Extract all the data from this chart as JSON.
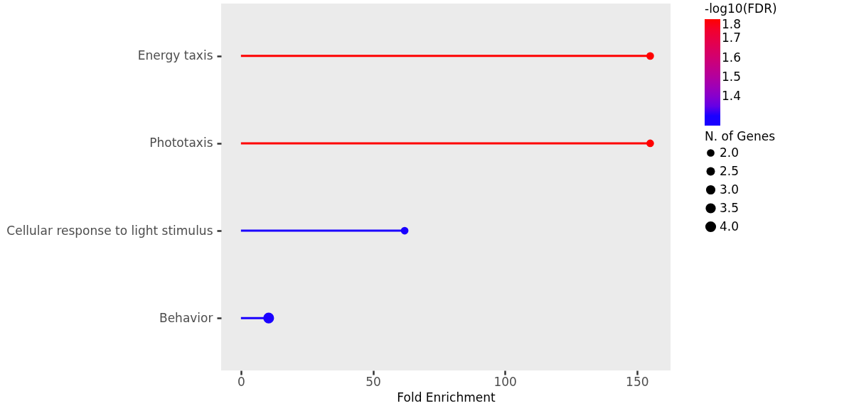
{
  "chart_data": {
    "type": "lollipop",
    "orientation": "horizontal",
    "categories": [
      "Energy taxis",
      "Phototaxis",
      "Cellular response to light stimulus",
      "Behavior"
    ],
    "values": [
      155,
      155,
      62,
      10.5
    ],
    "sizes": [
      2,
      2,
      2,
      4
    ],
    "size_legend": [
      {
        "value": 2,
        "label": "2.0"
      },
      2.5,
      {
        "value": 3,
        "label": "3.0"
      },
      3.5,
      {
        "value": 4,
        "label": "4.0"
      }
    ],
    "legend_title": "N. of Genes",
    "cvalues": [
      1.8,
      1.8,
      1.3,
      1.3
    ],
    "colors": [
      "#ff0000",
      "#ff0000",
      "#1a00ff",
      "#1a00ff"
    ],
    "clabel": "-log10(FDR)",
    "clim": [
      1.25,
      1.8
    ],
    "cticks": [
      1.4,
      1.5,
      1.6,
      1.7,
      1.8
    ],
    "xlabel": "Fold Enrichment",
    "xlim": [
      -7.5,
      162.7
    ],
    "xticks": [
      0,
      50,
      100,
      150
    ],
    "marker": "circle"
  }
}
